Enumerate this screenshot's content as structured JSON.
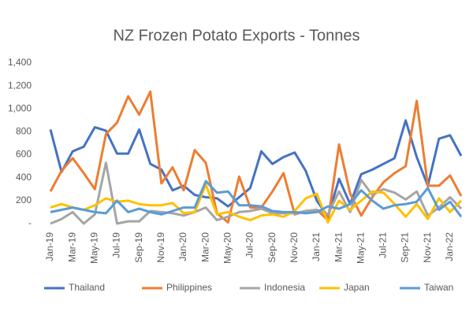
{
  "chart_data": {
    "type": "line",
    "title": "NZ Frozen Potato Exports - Tonnes",
    "categories": [
      "Jan-19",
      null,
      "Mar-19",
      null,
      "May-19",
      null,
      "Jul-19",
      null,
      "Sep-19",
      null,
      "Nov-19",
      null,
      "Jan-20",
      null,
      "Mar-20",
      null,
      "May-20",
      null,
      "Jul-20",
      null,
      "Sep-20",
      null,
      "Nov-20",
      null,
      "Jan-21",
      null,
      "Mar-21",
      null,
      "May-21",
      null,
      "Jul-21",
      null,
      "Sep-21",
      null,
      "Nov-21",
      null,
      "Jan-22",
      null
    ],
    "series": [
      {
        "name": "Thailand",
        "color": "#4472c4",
        "values": [
          820,
          450,
          630,
          670,
          840,
          810,
          610,
          610,
          820,
          520,
          470,
          290,
          330,
          250,
          230,
          220,
          150,
          230,
          310,
          630,
          520,
          580,
          620,
          460,
          200,
          60,
          390,
          170,
          430,
          470,
          520,
          570,
          900,
          580,
          330,
          740,
          770,
          590
        ]
      },
      {
        "name": "Philippines",
        "color": "#ed7d31",
        "values": [
          280,
          460,
          570,
          440,
          300,
          780,
          880,
          1110,
          950,
          1150,
          350,
          490,
          290,
          640,
          530,
          90,
          10,
          410,
          140,
          140,
          280,
          440,
          80,
          110,
          120,
          30,
          690,
          260,
          70,
          230,
          360,
          440,
          500,
          1070,
          330,
          330,
          420,
          240
        ]
      },
      {
        "name": "Indonesia",
        "color": "#a5a5a5",
        "values": [
          0,
          40,
          100,
          0,
          80,
          530,
          0,
          20,
          20,
          110,
          100,
          90,
          70,
          100,
          140,
          30,
          60,
          100,
          110,
          130,
          90,
          90,
          90,
          110,
          120,
          80,
          280,
          100,
          380,
          250,
          300,
          270,
          210,
          280,
          70,
          140,
          230,
          130
        ]
      },
      {
        "name": "Japan",
        "color": "#ffc000",
        "values": [
          140,
          170,
          140,
          120,
          160,
          220,
          190,
          200,
          170,
          160,
          160,
          180,
          90,
          100,
          340,
          80,
          100,
          60,
          30,
          70,
          80,
          60,
          110,
          220,
          260,
          10,
          200,
          120,
          200,
          280,
          270,
          170,
          60,
          170,
          40,
          220,
          100,
          200
        ]
      },
      {
        "name": "Taiwan",
        "color": "#5b9bd5",
        "values": [
          100,
          120,
          140,
          120,
          100,
          90,
          200,
          100,
          130,
          100,
          80,
          110,
          140,
          140,
          370,
          270,
          280,
          160,
          160,
          150,
          110,
          100,
          100,
          90,
          100,
          150,
          130,
          170,
          290,
          200,
          130,
          160,
          170,
          190,
          310,
          120,
          190,
          60
        ]
      }
    ],
    "ylim": [
      0,
      1400
    ],
    "yticks": [
      {
        "value": 0,
        "label": "-"
      },
      200,
      400,
      600,
      800,
      {
        "value": 1000,
        "label": "1,000"
      },
      {
        "value": 1200,
        "label": "1,200"
      },
      {
        "value": 1400,
        "label": "1,400"
      }
    ],
    "grid": false
  }
}
